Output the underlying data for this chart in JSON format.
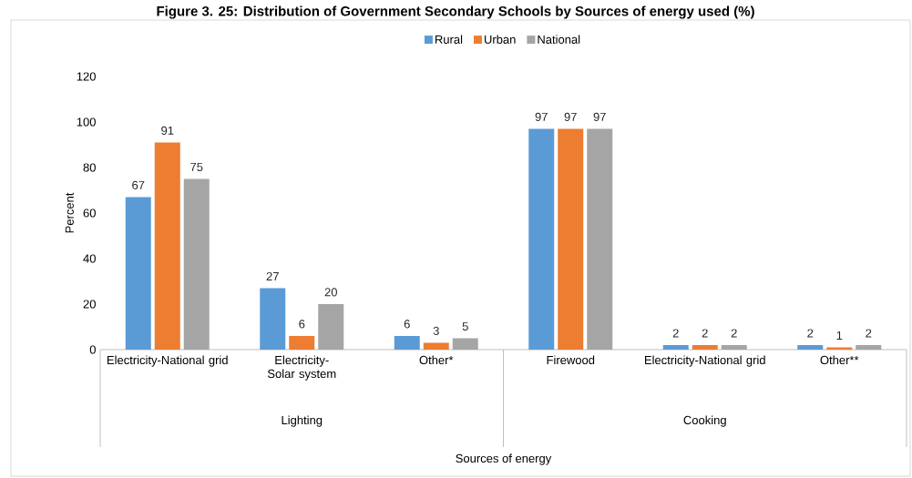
{
  "chart_data": {
    "type": "bar",
    "title": "Figure 3. 25: Distribution of Government Secondary Schools by Sources of energy used (%)",
    "ylabel": "Percent",
    "categories": [
      "Electricity-National grid",
      "Electricity- Solar system",
      "Other*",
      "Firewood",
      "Electricity-National grid",
      "Other**"
    ],
    "series": [
      {
        "name": "Rural",
        "color": "#5b9bd5",
        "values": [
          67,
          27,
          6,
          97,
          2,
          2
        ]
      },
      {
        "name": "Urban",
        "color": "#ed7d31",
        "values": [
          91,
          6,
          3,
          97,
          2,
          1
        ]
      },
      {
        "name": "National",
        "color": "#a5a5a5",
        "values": [
          75,
          20,
          5,
          97,
          2,
          2
        ]
      }
    ],
    "annotations": [
      "Lighting",
      "Cooking",
      "Sources of energy"
    ],
    "ylim": [
      0,
      120
    ],
    "yticks": [
      0,
      20,
      40,
      60,
      80,
      100,
      120
    ],
    "data_labels": true,
    "legend": "top",
    "grid": false
  }
}
